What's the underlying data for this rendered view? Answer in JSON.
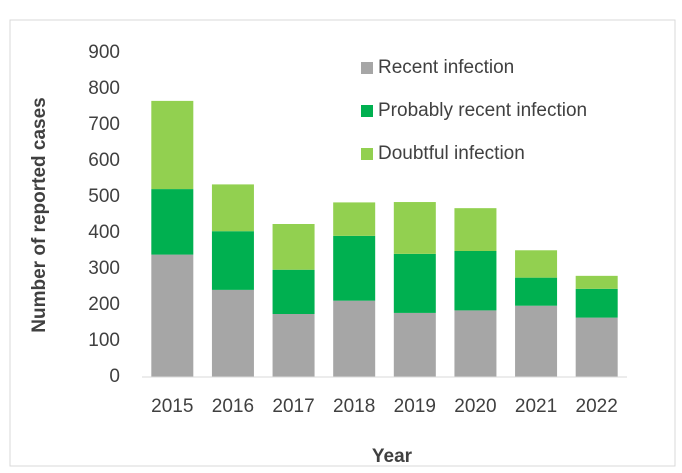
{
  "chart_data": {
    "type": "stacked_bar",
    "categories": [
      "2015",
      "2016",
      "2017",
      "2018",
      "2019",
      "2020",
      "2021",
      "2022"
    ],
    "series": [
      {
        "name": "Recent infection",
        "color": "#a6a6a6",
        "values": [
          340,
          242,
          175,
          212,
          178,
          185,
          198,
          165
        ]
      },
      {
        "name": "Probably recent infection",
        "color": "#00b050",
        "values": [
          182,
          163,
          123,
          180,
          164,
          165,
          78,
          80
        ]
      },
      {
        "name": "Doubtful infection",
        "color": "#92d050",
        "values": [
          245,
          130,
          127,
          93,
          144,
          119,
          76,
          36
        ]
      }
    ],
    "x_label": "Year",
    "y_label": "Number of reported cases",
    "ylim": [
      0,
      900
    ],
    "yticks": [
      0,
      100,
      200,
      300,
      400,
      500,
      600,
      700,
      800,
      900
    ],
    "grid": false,
    "legend": "top-right"
  }
}
